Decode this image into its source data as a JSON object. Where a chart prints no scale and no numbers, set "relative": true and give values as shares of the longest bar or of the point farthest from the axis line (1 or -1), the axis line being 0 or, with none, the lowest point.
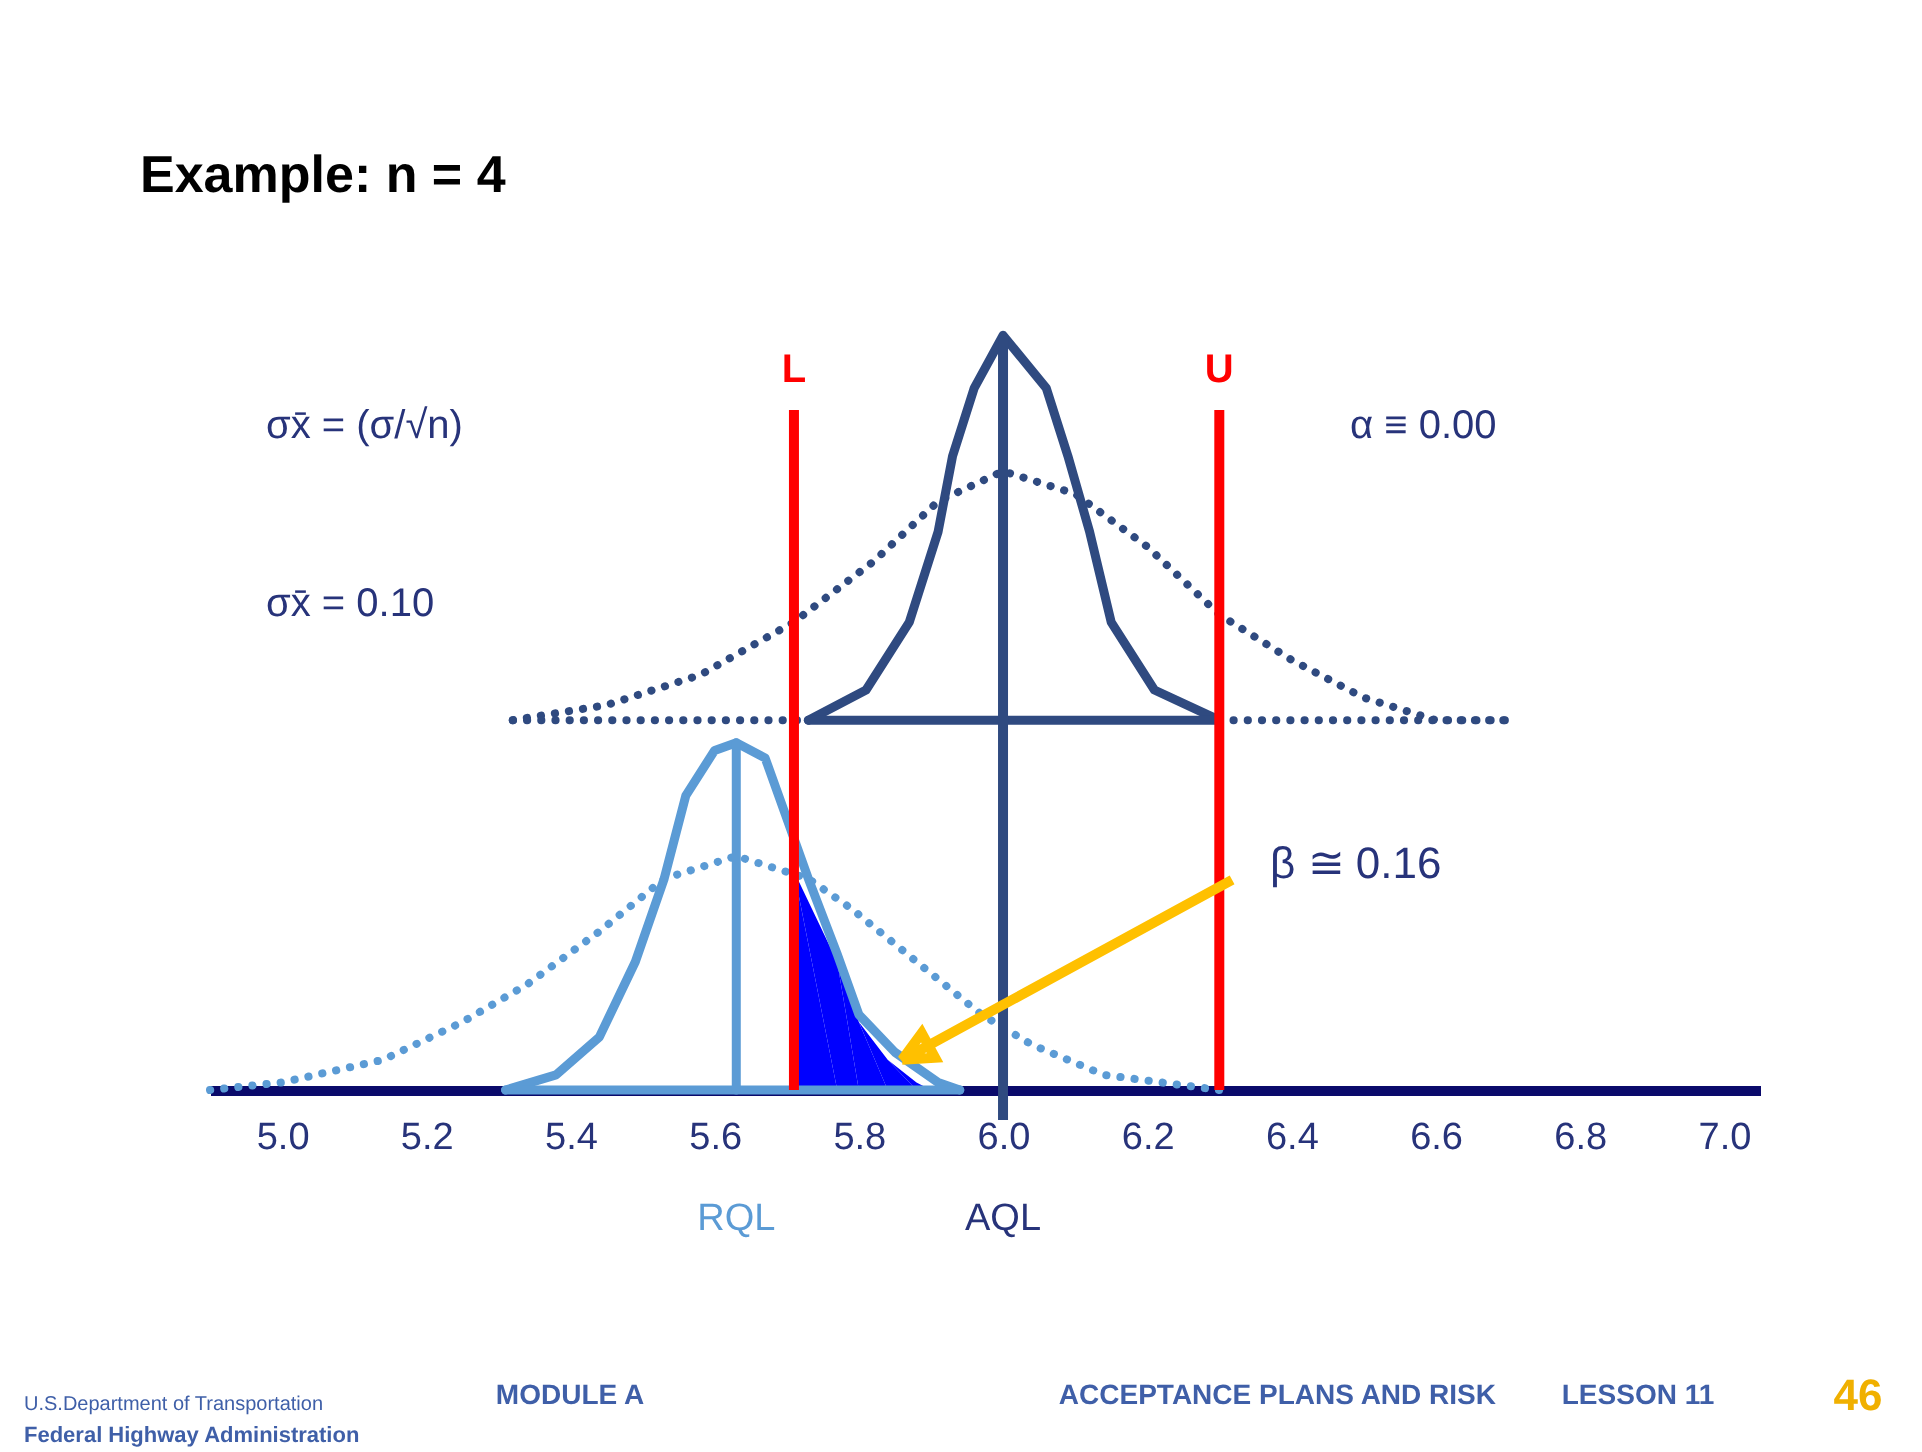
{
  "chart_data": {
    "type": "line",
    "relative": true,
    "title": "Example: n = 4",
    "xlim": [
      4.9,
      7.05
    ],
    "xticks": [
      {
        "value": 5,
        "label": "5.0"
      },
      5.2,
      5.4,
      5.6,
      5.8,
      {
        "value": 6,
        "label": "6.0"
      },
      6.2,
      6.4,
      6.6,
      6.8,
      {
        "value": 7,
        "label": "7.0"
      }
    ],
    "series": [
      {
        "line_style": "dotted",
        "color": "#2f4a80",
        "x": [
          5.32,
          5.45,
          5.58,
          5.71,
          5.82,
          5.91,
          6.0,
          6.1,
          6.2,
          6.3,
          6.4,
          6.5,
          6.6,
          6.7
        ],
        "values": [
          0.49,
          0.51,
          0.55,
          0.62,
          0.7,
          0.78,
          0.82,
          0.79,
          0.72,
          0.63,
          0.57,
          0.52,
          0.49,
          0.49
        ]
      },
      {
        "line_style": "dotted",
        "color": "#2f4a80",
        "x": [
          5.32,
          5.73
        ],
        "values": [
          0.49,
          0.49
        ]
      },
      {
        "line_style": "dotted",
        "color": "#2f4a80",
        "x": [
          6.3,
          6.7
        ],
        "values": [
          0.49,
          0.49
        ]
      },
      {
        "line_style": "dotted",
        "color": "#5b9bd5",
        "x": [
          4.9,
          5.0,
          5.14,
          5.25,
          5.34,
          5.44,
          5.53,
          5.63,
          5.73,
          5.79,
          5.88,
          5.97,
          6.04,
          6.14,
          6.3
        ],
        "values": [
          0,
          0.01,
          0.04,
          0.09,
          0.14,
          0.21,
          0.28,
          0.31,
          0.28,
          0.24,
          0.17,
          0.1,
          0.06,
          0.02,
          0
        ]
      },
      {
        "type": "area",
        "color": "#0000ff",
        "x": [
          5.71,
          5.77,
          5.8,
          5.84,
          5.88,
          5.9
        ],
        "values": [
          0.29,
          0.17,
          0.09,
          0.04,
          0.01,
          0
        ]
      },
      {
        "color": "#2f4a80",
        "x": [
          5.73,
          5.81,
          5.87,
          5.91,
          5.93,
          5.96,
          6.0,
          6.06,
          6.09,
          6.12,
          6.15,
          6.21,
          6.3
        ],
        "values": [
          0.49,
          0.53,
          0.62,
          0.74,
          0.84,
          0.93,
          1.0,
          0.93,
          0.84,
          0.74,
          0.62,
          0.53,
          0.49
        ]
      },
      {
        "color": "#2f4a80",
        "x": [
          5.73,
          6.3
        ],
        "values": [
          0.49,
          0.49
        ]
      },
      {
        "color": "#5b9bd5",
        "x": [
          5.31,
          5.38,
          5.44,
          5.49,
          5.53,
          5.56,
          5.6,
          5.63,
          5.67,
          5.7,
          5.73,
          5.77,
          5.8,
          5.85,
          5.91,
          5.94
        ],
        "values": [
          0,
          0.02,
          0.07,
          0.17,
          0.28,
          0.39,
          0.45,
          0.46,
          0.44,
          0.36,
          0.28,
          0.18,
          0.1,
          0.05,
          0.01,
          0
        ]
      },
      {
        "color": "#5b9bd5",
        "x": [
          5.31,
          5.94
        ],
        "values": [
          0,
          0
        ]
      },
      {
        "name": "RQL",
        "color": "#5b9bd5",
        "x": [
          5.63,
          5.63
        ],
        "values": [
          0,
          0.46
        ]
      }
    ],
    "ref_lines": [
      {
        "axis": "x",
        "value": 5.71,
        "label": "L",
        "color": "#ff0000"
      },
      {
        "axis": "x",
        "value": 6.3,
        "label": "U",
        "color": "#ff0000"
      },
      {
        "axis": "x",
        "value": 6.0,
        "label": "AQL",
        "color": "#2f4a80"
      }
    ],
    "annotations": [
      "σx̄ = (σ/√n)",
      "σx̄ = 0.10",
      "α ≡ 0.00",
      {
        "text": "β ≅ 0.16",
        "x": 5.86,
        "y": 0.04
      },
      "U.S.Department of Transportation",
      "Federal Highway Administration",
      "MODULE A",
      "ACCEPTANCE PLANS AND RISK",
      "LESSON 11",
      "46"
    ]
  }
}
